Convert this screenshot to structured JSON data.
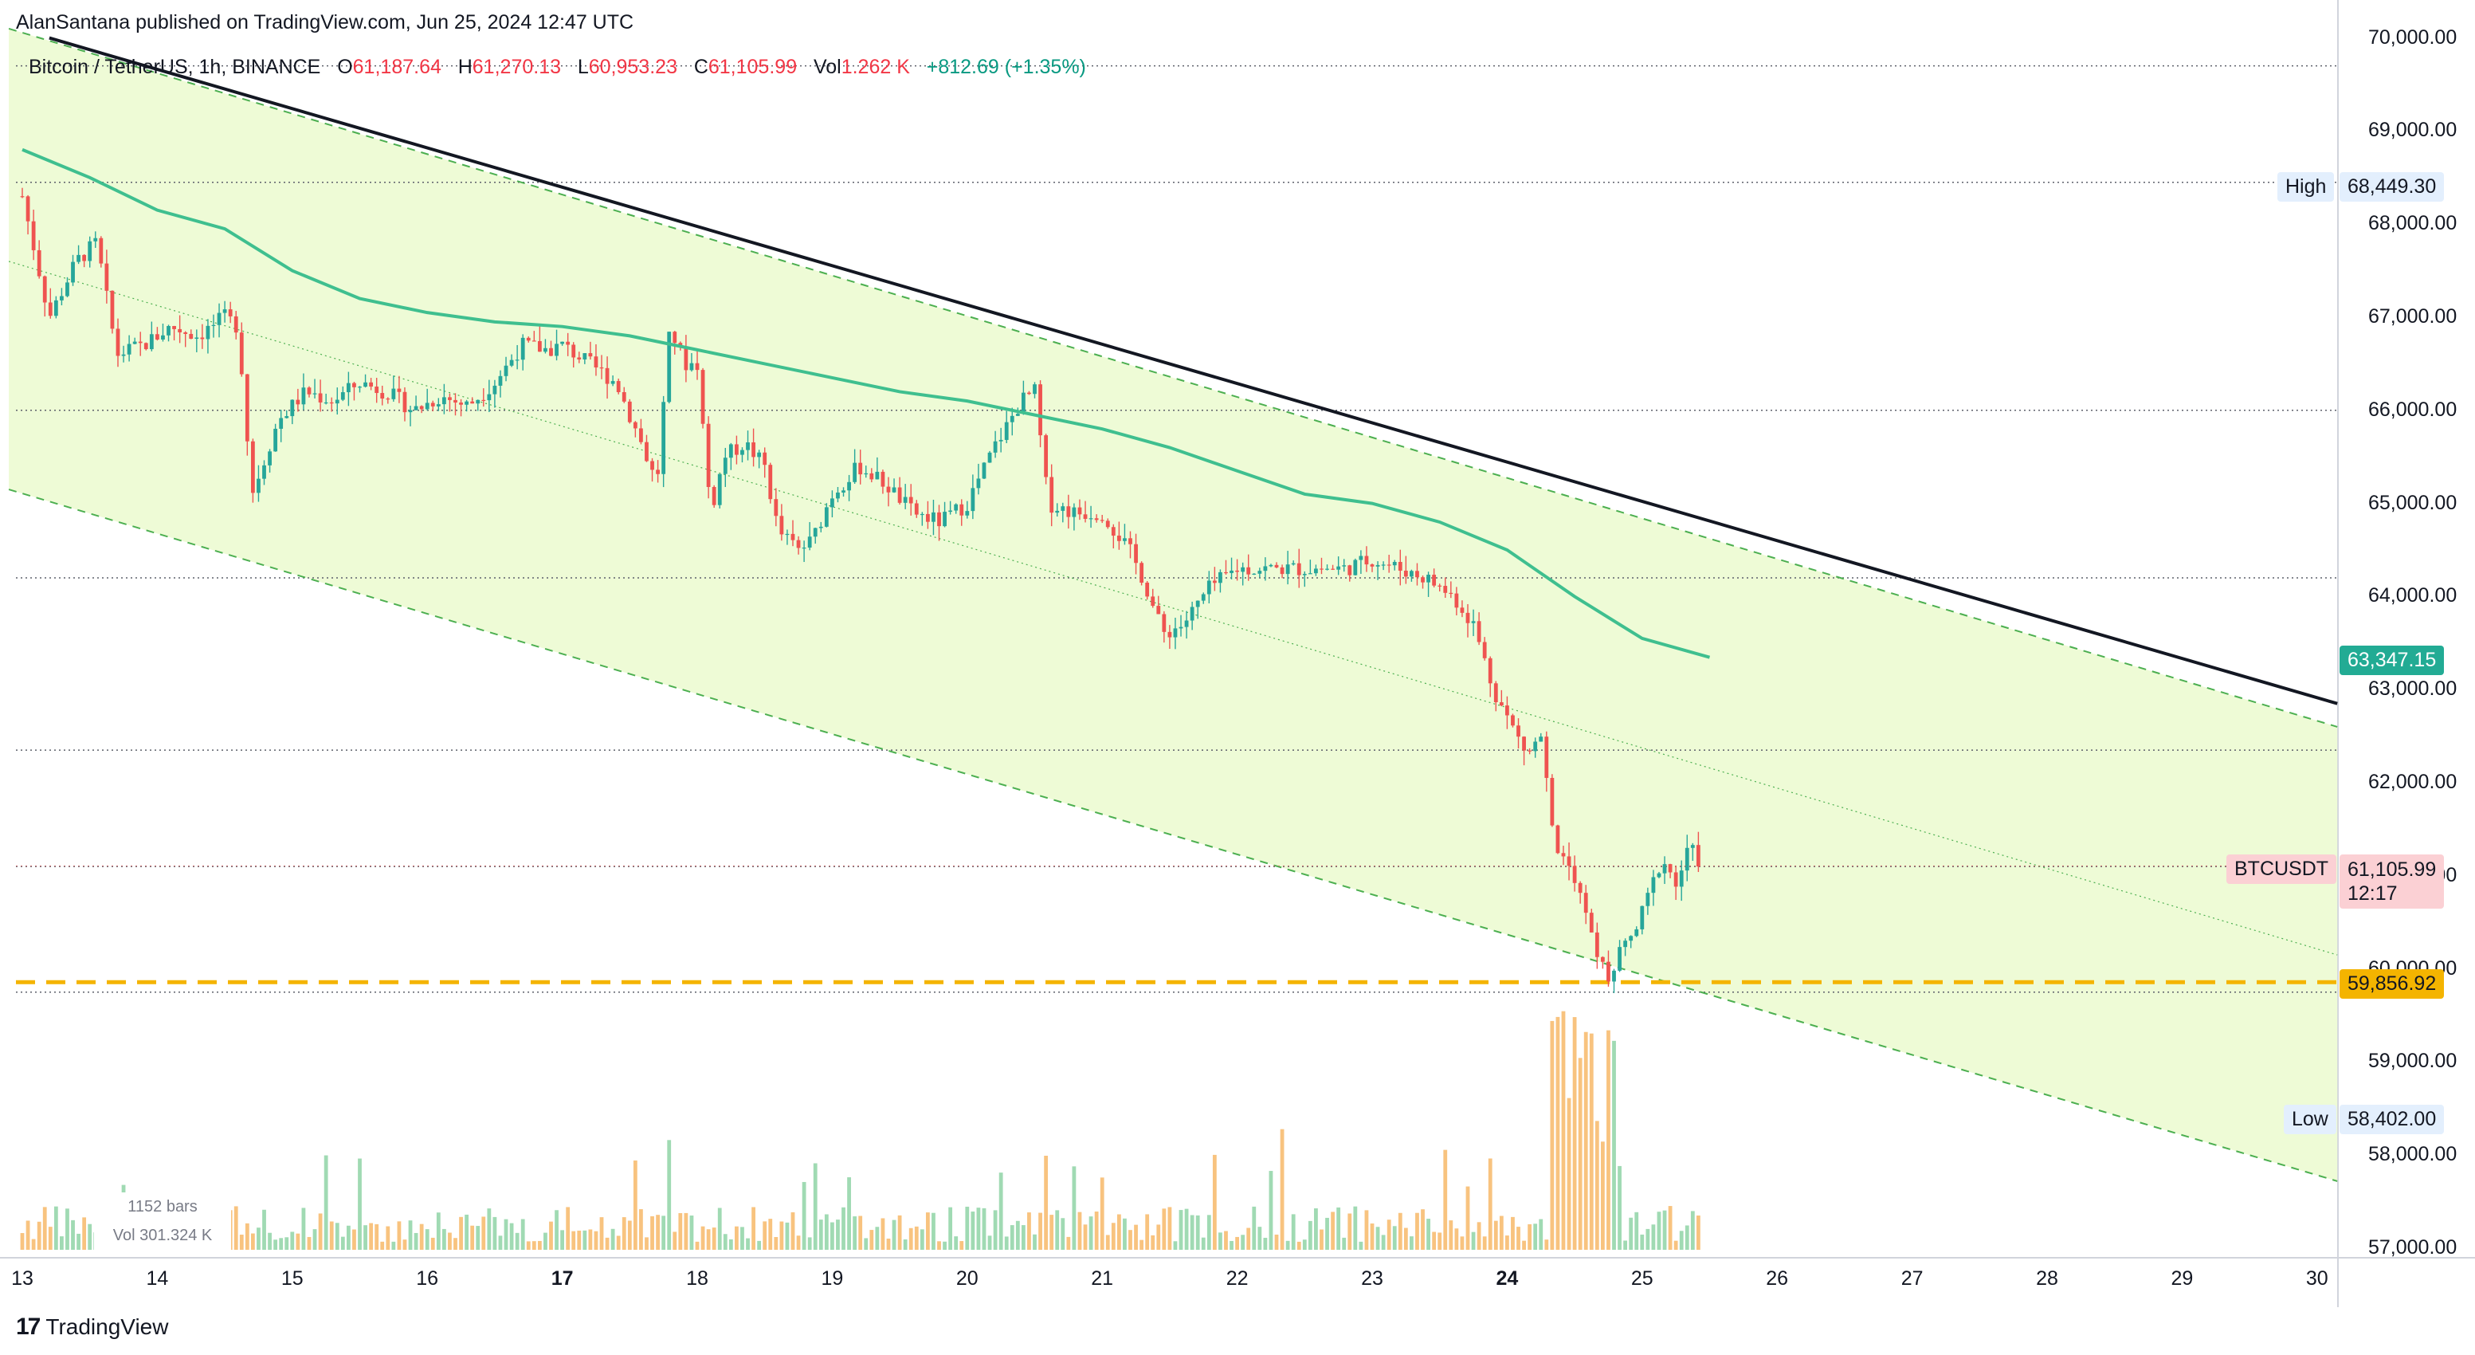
{
  "header": {
    "published": "AlanSantana published on TradingView.com, Jun 25, 2024 12:47 UTC"
  },
  "legend": {
    "symbol": "Bitcoin / TetherUS, 1h, BINANCE",
    "o_label": "O",
    "o_value": "61,187.64",
    "h_label": "H",
    "h_value": "61,270.13",
    "l_label": "L",
    "l_value": "60,953.23",
    "c_label": "C",
    "c_value": "61,105.99",
    "vol_label": "Vol",
    "vol_value": "1.262 K",
    "change": "+812.69 (+1.35%)"
  },
  "bars_info": {
    "bars": "1152 bars",
    "vol": "Vol 301.324 K"
  },
  "footer": {
    "brand": "TradingView"
  },
  "tags": {
    "high_label": "High",
    "high_value": "68,449.30",
    "low_label": "Low",
    "low_value": "58,402.00",
    "ma_value": "63,347.15",
    "symbol": "BTCUSDT",
    "price": "61,105.99",
    "countdown": "12:17",
    "support_value": "59,856.92"
  },
  "colors": {
    "up": "#26a69a",
    "down": "#ef5350",
    "ma": "#3fbf8f",
    "channel_fill": "#eefbd6",
    "channel_line": "#4caf50",
    "resistance": "#131722",
    "support": "#f4b400"
  },
  "chart_data": {
    "type": "candlestick",
    "title": "Bitcoin / TetherUS, 1h, BINANCE",
    "ylim": [
      57000,
      70000
    ],
    "y_ticks": [
      "57,000.00",
      "58,000.00",
      "59,000.00",
      "60,000.00",
      "61,000.00",
      "62,000.00",
      "63,000.00",
      "64,000.00",
      "65,000.00",
      "66,000.00",
      "67,000.00",
      "68,000.00",
      "69,000.00",
      "70,000.00"
    ],
    "x_ticks": [
      {
        "label": "13",
        "day": 13,
        "bold": false
      },
      {
        "label": "14",
        "day": 14,
        "bold": false
      },
      {
        "label": "15",
        "day": 15,
        "bold": false
      },
      {
        "label": "16",
        "day": 16,
        "bold": false
      },
      {
        "label": "17",
        "day": 17,
        "bold": true
      },
      {
        "label": "18",
        "day": 18,
        "bold": false
      },
      {
        "label": "19",
        "day": 19,
        "bold": false
      },
      {
        "label": "20",
        "day": 20,
        "bold": false
      },
      {
        "label": "21",
        "day": 21,
        "bold": false
      },
      {
        "label": "22",
        "day": 22,
        "bold": false
      },
      {
        "label": "23",
        "day": 23,
        "bold": false
      },
      {
        "label": "24",
        "day": 24,
        "bold": true
      },
      {
        "label": "25",
        "day": 25,
        "bold": false
      },
      {
        "label": "26",
        "day": 26,
        "bold": false
      },
      {
        "label": "27",
        "day": 27,
        "bold": false
      },
      {
        "label": "28",
        "day": 28,
        "bold": false
      },
      {
        "label": "29",
        "day": 29,
        "bold": false
      },
      {
        "label": "30",
        "day": 30,
        "bold": false
      }
    ],
    "price_path": [
      [
        13.0,
        68300
      ],
      [
        13.2,
        67000
      ],
      [
        13.4,
        67600
      ],
      [
        13.55,
        67800
      ],
      [
        13.7,
        66600
      ],
      [
        13.9,
        66700
      ],
      [
        14.1,
        66900
      ],
      [
        14.3,
        66800
      ],
      [
        14.5,
        67000
      ],
      [
        14.6,
        66900
      ],
      [
        14.7,
        65100
      ],
      [
        14.9,
        65900
      ],
      [
        15.1,
        66200
      ],
      [
        15.3,
        66100
      ],
      [
        15.5,
        66300
      ],
      [
        15.7,
        66200
      ],
      [
        15.9,
        66000
      ],
      [
        16.1,
        66150
      ],
      [
        16.3,
        66050
      ],
      [
        16.5,
        66300
      ],
      [
        16.7,
        66700
      ],
      [
        16.9,
        66650
      ],
      [
        17.0,
        66700
      ],
      [
        17.2,
        66500
      ],
      [
        17.4,
        66300
      ],
      [
        17.6,
        65600
      ],
      [
        17.7,
        65200
      ],
      [
        17.8,
        66900
      ],
      [
        17.9,
        66500
      ],
      [
        18.0,
        66500
      ],
      [
        18.1,
        64900
      ],
      [
        18.2,
        65500
      ],
      [
        18.35,
        65650
      ],
      [
        18.5,
        65400
      ],
      [
        18.6,
        64700
      ],
      [
        18.75,
        64500
      ],
      [
        18.85,
        64600
      ],
      [
        19.0,
        65100
      ],
      [
        19.2,
        65400
      ],
      [
        19.4,
        65200
      ],
      [
        19.6,
        64900
      ],
      [
        19.8,
        64800
      ],
      [
        20.0,
        65000
      ],
      [
        20.2,
        65600
      ],
      [
        20.4,
        66100
      ],
      [
        20.5,
        66200
      ],
      [
        20.6,
        65000
      ],
      [
        20.8,
        64900
      ],
      [
        21.0,
        64900
      ],
      [
        21.2,
        64500
      ],
      [
        21.3,
        64200
      ],
      [
        21.45,
        63600
      ],
      [
        21.6,
        63700
      ],
      [
        21.8,
        64100
      ],
      [
        22.0,
        64300
      ],
      [
        22.2,
        64300
      ],
      [
        22.4,
        64300
      ],
      [
        22.6,
        64300
      ],
      [
        22.8,
        64300
      ],
      [
        23.0,
        64400
      ],
      [
        23.2,
        64300
      ],
      [
        23.4,
        64200
      ],
      [
        23.6,
        64000
      ],
      [
        23.75,
        63700
      ],
      [
        23.9,
        63000
      ],
      [
        24.0,
        62700
      ],
      [
        24.15,
        62300
      ],
      [
        24.25,
        62500
      ],
      [
        24.35,
        61300
      ],
      [
        24.45,
        61200
      ],
      [
        24.55,
        60800
      ],
      [
        24.65,
        60200
      ],
      [
        24.75,
        59900
      ],
      [
        24.85,
        60200
      ],
      [
        24.95,
        60400
      ],
      [
        25.05,
        60800
      ],
      [
        25.15,
        61200
      ],
      [
        25.25,
        60900
      ],
      [
        25.35,
        61300
      ],
      [
        25.45,
        61106
      ]
    ],
    "ma_path": [
      [
        13.0,
        68800
      ],
      [
        13.5,
        68500
      ],
      [
        14.0,
        68150
      ],
      [
        14.5,
        67950
      ],
      [
        15.0,
        67500
      ],
      [
        15.5,
        67200
      ],
      [
        16.0,
        67050
      ],
      [
        16.5,
        66950
      ],
      [
        17.0,
        66900
      ],
      [
        17.5,
        66800
      ],
      [
        18.0,
        66650
      ],
      [
        18.5,
        66500
      ],
      [
        19.0,
        66350
      ],
      [
        19.5,
        66200
      ],
      [
        20.0,
        66100
      ],
      [
        20.5,
        65950
      ],
      [
        21.0,
        65800
      ],
      [
        21.5,
        65600
      ],
      [
        22.0,
        65350
      ],
      [
        22.5,
        65100
      ],
      [
        23.0,
        65000
      ],
      [
        23.5,
        64800
      ],
      [
        24.0,
        64500
      ],
      [
        24.5,
        64000
      ],
      [
        25.0,
        63550
      ],
      [
        25.5,
        63347.15
      ]
    ],
    "channel": {
      "upper": [
        [
          12.9,
          70100
        ],
        [
          30.15,
          62600
        ]
      ],
      "middle": [
        [
          12.9,
          67600
        ],
        [
          30.15,
          60150
        ]
      ],
      "lower": [
        [
          12.9,
          65150
        ],
        [
          30.15,
          57720
        ]
      ]
    },
    "resistance": [
      [
        13.2,
        70000
      ],
      [
        30.15,
        62850
      ]
    ],
    "support": 59856.92,
    "high": 68449.3,
    "low": 58402.0,
    "last": 61105.99,
    "h_levels": [
      69700,
      68449.3,
      66000,
      64200,
      62350,
      61100,
      59750
    ]
  }
}
